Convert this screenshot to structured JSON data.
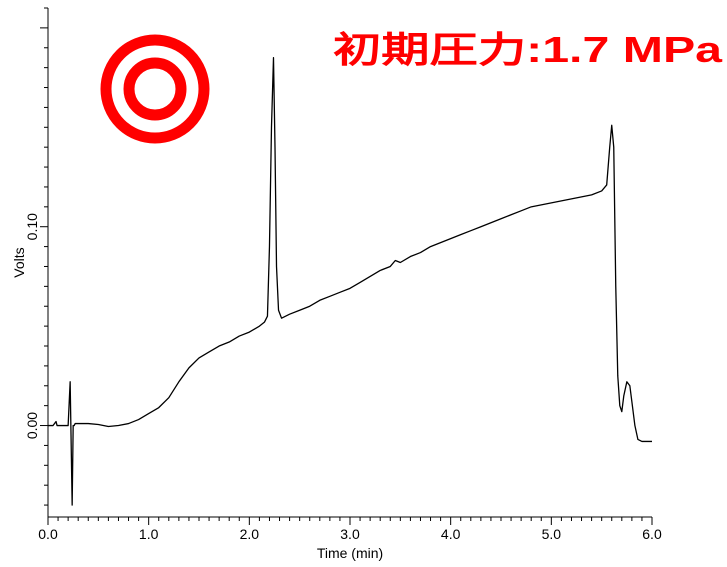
{
  "chart_data": {
    "type": "line",
    "title": "",
    "xlabel": "Time (min)",
    "ylabel": "Volts",
    "xlim": [
      0.0,
      6.0
    ],
    "ylim": [
      -0.046,
      0.21
    ],
    "x_ticks": [
      "0.0",
      "1.0",
      "2.0",
      "3.0",
      "4.0",
      "5.0",
      "6.0"
    ],
    "y_ticks": [
      {
        "value": 0.0,
        "label": "0.00"
      },
      {
        "value": 0.1,
        "label": "0.10"
      }
    ],
    "grid": false,
    "annotation": {
      "text": "初期圧力:1.7 MPa",
      "color": "#ff0000",
      "symbol": "double-circle-icon"
    },
    "line_color": "#000000",
    "series": [
      {
        "x": [
          0.0,
          0.05,
          0.08,
          0.09,
          0.11,
          0.17,
          0.2,
          0.22,
          0.24,
          0.25,
          0.26,
          0.27,
          0.28,
          0.29,
          0.32,
          0.4,
          0.5,
          0.6,
          0.7,
          0.8,
          0.9,
          1.0,
          1.1,
          1.2,
          1.3,
          1.4,
          1.5,
          1.6,
          1.7,
          1.8,
          1.9,
          2.0,
          2.1,
          2.15,
          2.18,
          2.2,
          2.22,
          2.24,
          2.255,
          2.27,
          2.29,
          2.32,
          2.36,
          2.4,
          2.5,
          2.6,
          2.7,
          2.8,
          2.9,
          3.0,
          3.1,
          3.2,
          3.3,
          3.4,
          3.45,
          3.5,
          3.6,
          3.7,
          3.8,
          3.9,
          4.0,
          4.1,
          4.2,
          4.3,
          4.4,
          4.5,
          4.6,
          4.7,
          4.8,
          4.9,
          5.0,
          5.1,
          5.2,
          5.3,
          5.4,
          5.5,
          5.55,
          5.58,
          5.6,
          5.62,
          5.64,
          5.66,
          5.68,
          5.7,
          5.72,
          5.75,
          5.78,
          5.8,
          5.83,
          5.86,
          5.9,
          5.95,
          6.0
        ],
        "y": [
          0.0,
          0.0,
          0.002,
          0.0,
          0.0,
          0.0,
          0.0,
          0.022,
          -0.04,
          0.0,
          0.0,
          0.001,
          0.001,
          0.001,
          0.001,
          0.001,
          0.0005,
          -0.0005,
          0.0,
          0.001,
          0.003,
          0.006,
          0.009,
          0.014,
          0.022,
          0.029,
          0.034,
          0.037,
          0.04,
          0.042,
          0.045,
          0.047,
          0.05,
          0.052,
          0.055,
          0.09,
          0.15,
          0.185,
          0.14,
          0.08,
          0.058,
          0.054,
          0.055,
          0.056,
          0.058,
          0.06,
          0.063,
          0.065,
          0.067,
          0.069,
          0.072,
          0.075,
          0.078,
          0.08,
          0.083,
          0.082,
          0.085,
          0.087,
          0.09,
          0.092,
          0.094,
          0.096,
          0.098,
          0.1,
          0.102,
          0.104,
          0.106,
          0.108,
          0.11,
          0.111,
          0.112,
          0.113,
          0.114,
          0.115,
          0.116,
          0.118,
          0.121,
          0.14,
          0.151,
          0.14,
          0.07,
          0.025,
          0.01,
          0.007,
          0.015,
          0.022,
          0.02,
          0.012,
          0.0,
          -0.007,
          -0.008,
          -0.008,
          -0.008
        ]
      }
    ]
  }
}
